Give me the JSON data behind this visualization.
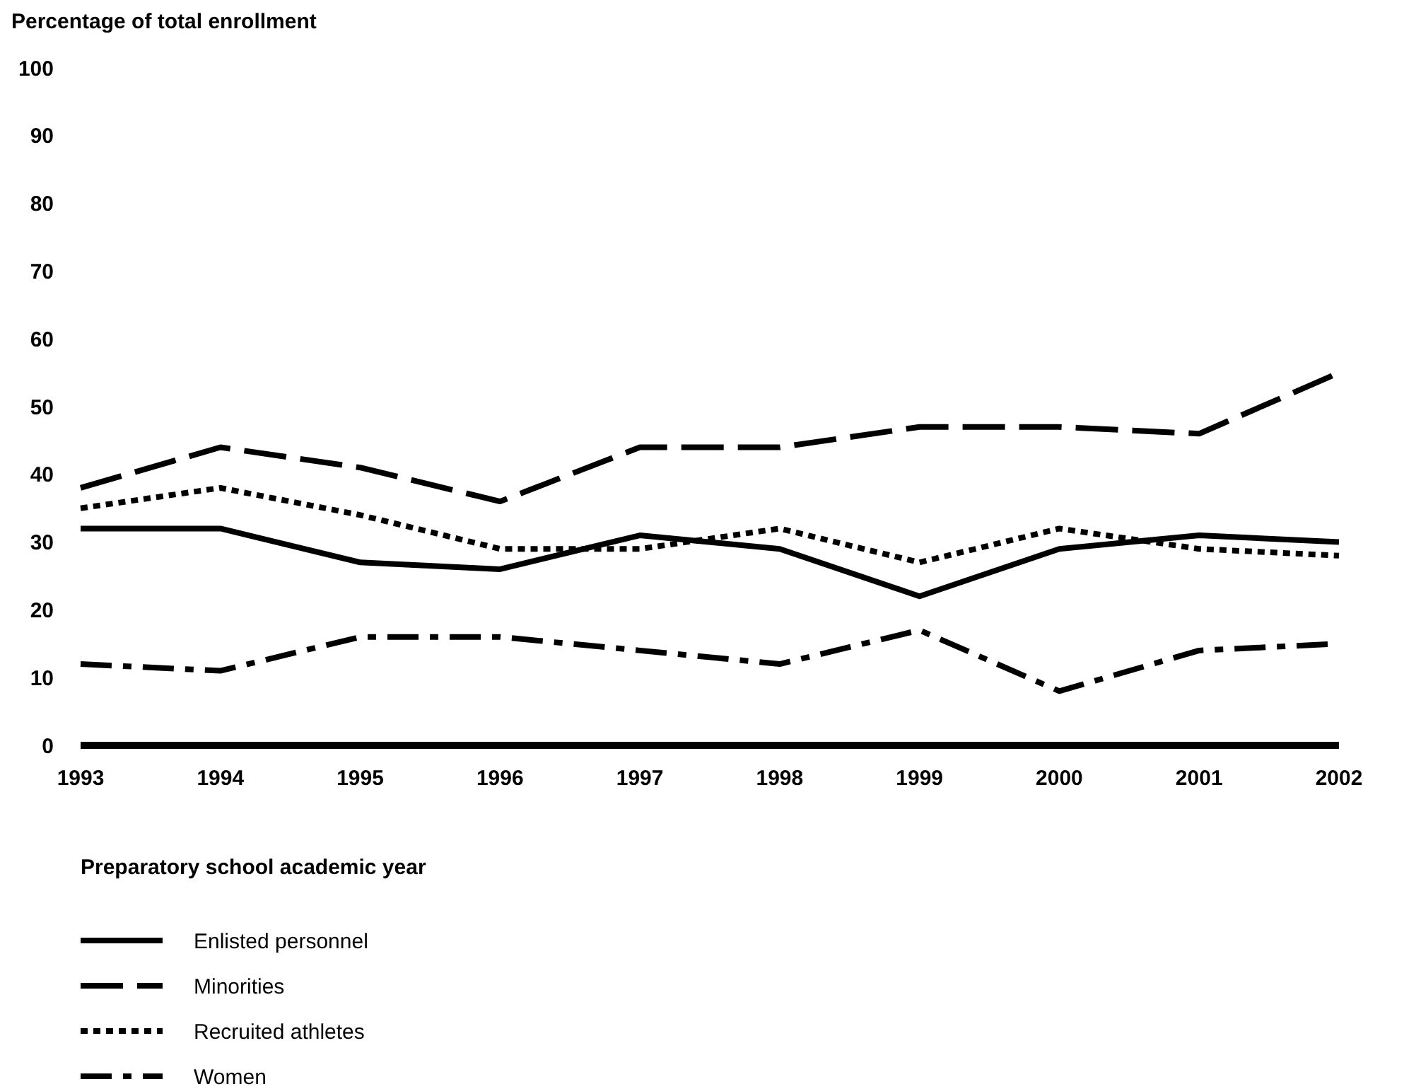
{
  "chart_data": {
    "type": "line",
    "ylabel": "Percentage of total enrollment",
    "xlabel": "Preparatory school academic year",
    "x": [
      1993,
      1994,
      1995,
      1996,
      1997,
      1998,
      1999,
      2000,
      2001,
      2002
    ],
    "xlim": [
      1993,
      2002
    ],
    "xticks": [
      1993,
      1994,
      1995,
      1996,
      1997,
      1998,
      1999,
      2000,
      2001,
      2002
    ],
    "ylim": [
      0,
      100
    ],
    "yticks": [
      0,
      10,
      20,
      30,
      40,
      50,
      60,
      70,
      80,
      90,
      100
    ],
    "grid": false,
    "legend": "bottom left",
    "series": [
      {
        "name": "Enlisted personnel",
        "color": "#000000",
        "line_style": "solid",
        "values": [
          32,
          32,
          27,
          26,
          31,
          29,
          22,
          29,
          31,
          30
        ]
      },
      {
        "name": "Minorities",
        "color": "#000000",
        "line_style": "dashed",
        "values": [
          38,
          44,
          41,
          36,
          44,
          44,
          47,
          47,
          46,
          55
        ]
      },
      {
        "name": "Recruited athletes",
        "color": "#000000",
        "line_style": "dotted",
        "values": [
          35,
          38,
          34,
          29,
          29,
          32,
          27,
          32,
          29,
          28
        ]
      },
      {
        "name": "Women",
        "color": "#000000",
        "line_style": "dashdot",
        "values": [
          12,
          11,
          16,
          16,
          14,
          12,
          17,
          8,
          14,
          15
        ]
      }
    ]
  }
}
